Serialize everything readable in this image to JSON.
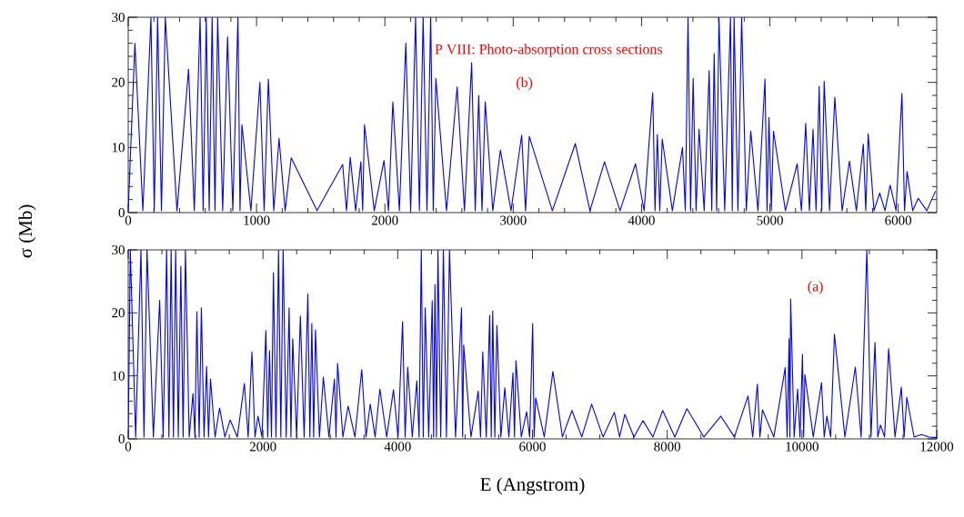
{
  "chart_data": [
    {
      "type": "line",
      "ylabel": "σ (Mb)",
      "annotations": [
        "P VIII: Photo-absorption cross sections",
        "(b)"
      ],
      "xlim": [
        0,
        6300
      ],
      "ylim": [
        0,
        30
      ],
      "xticks": [
        0,
        1000,
        2000,
        3000,
        4000,
        5000,
        6000
      ],
      "yticks": [
        0,
        10,
        20,
        30
      ],
      "grid": false,
      "series": [
        {
          "color": "#0000ff",
          "x": [
            0,
            52,
            114,
            177,
            203,
            229,
            259,
            289,
            380,
            470,
            515,
            560,
            584,
            608,
            631,
            654,
            676,
            697,
            736,
            774,
            815,
            855,
            871,
            886,
            956,
            1026,
            1059,
            1092,
            1134,
            1175,
            1223,
            1270,
            1471,
            1671,
            1701,
            1730,
            1772,
            1813,
            1827,
            1841,
            1917,
            1993,
            2028,
            2062,
            2113,
            2163,
            2201,
            2239,
            2269,
            2298,
            2328,
            2357,
            2377,
            2397,
            2480,
            2563,
            2620,
            2676,
            2704,
            2731,
            2757,
            2782,
            2841,
            2900,
            2983,
            3066,
            3096,
            3125,
            3305,
            3484,
            3598,
            3711,
            3832,
            3953,
            4020,
            4087,
            4105,
            4123,
            4142,
            4161,
            4240,
            4319,
            4341,
            4362,
            4382,
            4402,
            4425,
            4448,
            4488,
            4527,
            4547,
            4566,
            4585,
            4603,
            4648,
            4693,
            4707,
            4721,
            4751,
            4780,
            4816,
            4851,
            4907,
            4962,
            4978,
            4993,
            5011,
            5028,
            5121,
            5213,
            5246,
            5279,
            5308,
            5336,
            5360,
            5384,
            5404,
            5423,
            5465,
            5506,
            5563,
            5620,
            5674,
            5728,
            5747,
            5766,
            5811,
            5856,
            5897,
            5937,
            5983,
            6029,
            6049,
            6069,
            6113,
            6156,
            6223,
            6290
          ],
          "values": [
            0.3,
            26,
            0.3,
            30,
            0.3,
            30,
            0.3,
            30,
            0.3,
            22,
            0.3,
            30,
            0.3,
            30,
            0.3,
            30,
            0.3,
            30,
            0.3,
            27,
            0.3,
            30,
            0.3,
            13.5,
            0.3,
            20,
            0.3,
            20.5,
            0.3,
            11.4,
            0.3,
            8.4,
            0.3,
            7.4,
            0.3,
            8.5,
            0.3,
            7.8,
            0.3,
            13.5,
            0.3,
            8,
            0.3,
            17,
            0.3,
            26,
            0.3,
            30,
            0.3,
            30,
            0.3,
            30,
            0.3,
            20.6,
            0.3,
            19.3,
            0.3,
            23,
            0.3,
            18,
            0.3,
            17,
            0.3,
            9.6,
            0.3,
            11.9,
            0.3,
            11.7,
            0.3,
            10.6,
            0.3,
            7.8,
            0.3,
            7.5,
            0.3,
            18.4,
            0.3,
            12,
            0.3,
            11.3,
            0.3,
            10,
            0.3,
            30,
            0.3,
            20.6,
            0.3,
            12.8,
            0.3,
            21.8,
            0.3,
            24.4,
            0.3,
            30,
            0.3,
            30,
            0.3,
            30,
            0.3,
            30,
            0.3,
            12.5,
            0.3,
            20.5,
            0.3,
            14.6,
            0.3,
            12.5,
            0.3,
            7.5,
            0.3,
            13.7,
            0.3,
            12.8,
            0.3,
            19.4,
            0.3,
            20.2,
            0.3,
            17.7,
            0.3,
            7.9,
            0.3,
            10.5,
            0.3,
            12.1,
            0.3,
            3,
            0.3,
            4.2,
            0.3,
            18.3,
            0.3,
            6.3,
            0.3,
            2.2,
            0.3,
            3.3
          ]
        }
      ]
    },
    {
      "type": "line",
      "xlabel": "E (Angstrom)",
      "annotations": [
        "(a)"
      ],
      "xlim": [
        0,
        12000
      ],
      "ylim": [
        0,
        30
      ],
      "xticks": [
        0,
        2000,
        4000,
        6000,
        8000,
        10000,
        12000
      ],
      "yticks": [
        0,
        10,
        20,
        30
      ],
      "grid": false,
      "series": [
        {
          "color": "#0000ff",
          "x": [
            0,
            31,
            110,
            189,
            234,
            279,
            373,
            467,
            519,
            570,
            604,
            637,
            671,
            704,
            743,
            781,
            815,
            849,
            905,
            961,
            990,
            1019,
            1053,
            1086,
            1125,
            1163,
            1192,
            1221,
            1289,
            1356,
            1435,
            1513,
            1619,
            1724,
            1780,
            1836,
            1881,
            1926,
            1985,
            2043,
            2070,
            2097,
            2126,
            2155,
            2193,
            2231,
            2265,
            2299,
            2344,
            2388,
            2415,
            2442,
            2499,
            2555,
            2611,
            2666,
            2696,
            2725,
            2752,
            2779,
            2838,
            2896,
            2979,
            3061,
            3084,
            3107,
            3186,
            3264,
            3365,
            3466,
            3529,
            3592,
            3664,
            3735,
            3836,
            3937,
            4005,
            4072,
            4110,
            4148,
            4216,
            4283,
            4317,
            4350,
            4379,
            4408,
            4460,
            4512,
            4532,
            4552,
            4575,
            4597,
            4638,
            4678,
            4723,
            4768,
            4858,
            4947,
            4963,
            4979,
            5087,
            5195,
            5229,
            5262,
            5314,
            5365,
            5388,
            5410,
            5441,
            5472,
            5531,
            5589,
            5650,
            5710,
            5733,
            5755,
            5834,
            5913,
            5958,
            6003,
            6025,
            6047,
            6175,
            6303,
            6445,
            6586,
            6732,
            6878,
            7047,
            7215,
            7293,
            7371,
            7506,
            7640,
            7787,
            7933,
            8113,
            8292,
            8544,
            8795,
            8997,
            9199,
            9269,
            9338,
            9376,
            9414,
            9583,
            9751,
            9780,
            9809,
            9821,
            9832,
            9884,
            9935,
            9971,
            10007,
            10025,
            10043,
            10167,
            10290,
            10330,
            10370,
            10426,
            10482,
            10637,
            10792,
            10878,
            10963,
            11024,
            11084,
            11125,
            11165,
            11226,
            11286,
            11381,
            11475,
            11516,
            11556,
            11664,
            11771,
            11886,
            12000
          ],
          "values": [
            0.3,
            30,
            0.3,
            30,
            0.3,
            30,
            0.3,
            22,
            0.3,
            30,
            0.3,
            30,
            0.3,
            30,
            0.3,
            27.4,
            0.3,
            30,
            0.3,
            7.2,
            0.3,
            20.2,
            0.3,
            20.8,
            0.3,
            11.5,
            0.3,
            9.5,
            0.3,
            4.9,
            0.3,
            3,
            0.3,
            8.8,
            0.3,
            13.8,
            0.3,
            3.6,
            0.3,
            17.2,
            0.3,
            14,
            0.3,
            26.4,
            0.3,
            30,
            0.3,
            30,
            0.3,
            20.8,
            0.3,
            15.9,
            0.3,
            19.5,
            0.3,
            23,
            0.3,
            18.3,
            0.3,
            17.3,
            0.3,
            9.8,
            0.3,
            9.5,
            0.3,
            12,
            0.3,
            5.2,
            0.3,
            11,
            0.3,
            5.5,
            0.3,
            7.9,
            0.3,
            7.8,
            0.3,
            18.6,
            0.3,
            11.4,
            0.3,
            9.2,
            0.3,
            30,
            0.3,
            20.8,
            0.3,
            21.9,
            0.3,
            24.5,
            0.3,
            30,
            0.3,
            30,
            0.3,
            30,
            0.3,
            20.8,
            0.3,
            14.9,
            0.3,
            7.6,
            0.3,
            13.8,
            0.3,
            19.6,
            0.3,
            20.3,
            0.3,
            18,
            0.3,
            8.1,
            0.3,
            10.5,
            0.3,
            12.4,
            0.3,
            4.3,
            0.3,
            18.3,
            0.3,
            6.5,
            0.3,
            10.7,
            0.3,
            4.5,
            0.3,
            5.5,
            0.3,
            4.2,
            0.3,
            3.9,
            0.3,
            2.9,
            0.3,
            4.5,
            0.3,
            4.8,
            0.3,
            3.6,
            0.3,
            6.8,
            0.3,
            8.7,
            0.3,
            4.6,
            0.3,
            11.3,
            0.3,
            15.9,
            0.3,
            22.2,
            0.3,
            7.9,
            0.3,
            13.4,
            0.3,
            10.2,
            0.3,
            8.9,
            0.3,
            3.6,
            0.3,
            16.6,
            0.3,
            11.4,
            0.3,
            30,
            0.3,
            15.3,
            0.3,
            2.2,
            0.3,
            14.3,
            0.3,
            8.2,
            0.3,
            6.6,
            0.3,
            0.7,
            0.3,
            0.2
          ]
        }
      ]
    }
  ]
}
